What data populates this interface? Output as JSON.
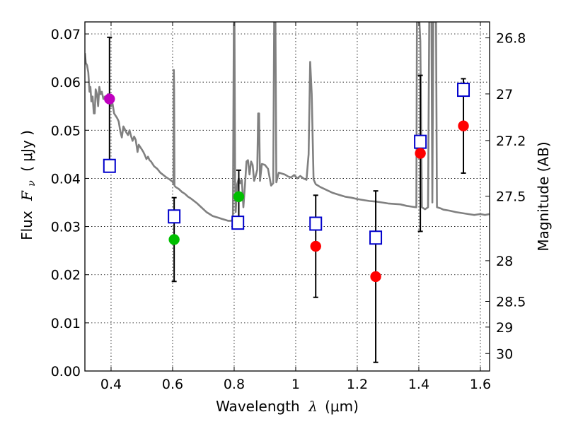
{
  "chart_data": {
    "type": "scatter",
    "xlabel_prefix": "Wavelength",
    "xlabel_var": "λ",
    "xlabel_unit": "(μm)",
    "ylabel_left_prefix": "Flux",
    "ylabel_left_var": "F",
    "ylabel_left_sub": "ν",
    "ylabel_left_unit": "( μJy )",
    "ylabel_right": "Magnitude (AB)",
    "xlim": [
      0.315,
      1.63
    ],
    "ylim": [
      0.0,
      0.0725
    ],
    "grid": true,
    "x_ticks": [
      0.4,
      0.6,
      0.8,
      1.0,
      1.2,
      1.4,
      1.6
    ],
    "x_tick_labels": [
      "0.4",
      "0.6",
      "0.8",
      "1",
      "1.2",
      "1.4",
      "1.6"
    ],
    "y_ticks": [
      0.0,
      0.01,
      0.02,
      0.03,
      0.04,
      0.05,
      0.06,
      0.07
    ],
    "y_tick_labels": [
      "0.00",
      "0.01",
      "0.02",
      "0.03",
      "0.04",
      "0.05",
      "0.06",
      "0.07"
    ],
    "mag_ticks": [
      {
        "mag": 26.8,
        "label": "26.8"
      },
      {
        "mag": 27.0,
        "label": "27"
      },
      {
        "mag": 27.2,
        "label": "27.2"
      },
      {
        "mag": 27.5,
        "label": "27.5"
      },
      {
        "mag": 28.0,
        "label": "28"
      },
      {
        "mag": 28.5,
        "label": "28.5"
      },
      {
        "mag": 29.0,
        "label": "29"
      },
      {
        "mag": 30.0,
        "label": "30"
      }
    ],
    "colors": {
      "observed_blue_band": "#bf00bf",
      "observed_green_band": "#00bf00",
      "observed_red_band": "#ff0000",
      "model_photometry": "#0000cc",
      "model_spectrum": "#808080",
      "errorbar": "#000000"
    },
    "observed_points": [
      {
        "x": 0.395,
        "y": 0.0565,
        "err": 0.0128,
        "color": "#bf00bf"
      },
      {
        "x": 0.605,
        "y": 0.0273,
        "err": 0.0087,
        "color": "#00bf00"
      },
      {
        "x": 0.815,
        "y": 0.0362,
        "err": 0.0055,
        "color": "#00bf00"
      },
      {
        "x": 1.065,
        "y": 0.0259,
        "err": 0.0106,
        "color": "#ff0000"
      },
      {
        "x": 1.26,
        "y": 0.0196,
        "err": 0.0178,
        "color": "#ff0000"
      },
      {
        "x": 1.405,
        "y": 0.0452,
        "err": 0.0162,
        "color": "#ff0000"
      },
      {
        "x": 1.545,
        "y": 0.0509,
        "err": 0.0098,
        "color": "#ff0000"
      }
    ],
    "model_points": [
      {
        "x": 0.395,
        "y": 0.0426
      },
      {
        "x": 0.605,
        "y": 0.0321
      },
      {
        "x": 0.812,
        "y": 0.0308
      },
      {
        "x": 1.065,
        "y": 0.0306
      },
      {
        "x": 1.26,
        "y": 0.0277
      },
      {
        "x": 1.405,
        "y": 0.0476
      },
      {
        "x": 1.545,
        "y": 0.0584
      }
    ],
    "spectrum": [
      [
        0.315,
        0.066
      ],
      [
        0.318,
        0.064
      ],
      [
        0.322,
        0.0635
      ],
      [
        0.326,
        0.062
      ],
      [
        0.33,
        0.058
      ],
      [
        0.333,
        0.059
      ],
      [
        0.336,
        0.056
      ],
      [
        0.34,
        0.057
      ],
      [
        0.344,
        0.0535
      ],
      [
        0.347,
        0.0535
      ],
      [
        0.35,
        0.0585
      ],
      [
        0.354,
        0.0575
      ],
      [
        0.358,
        0.055
      ],
      [
        0.362,
        0.059
      ],
      [
        0.366,
        0.0575
      ],
      [
        0.37,
        0.058
      ],
      [
        0.375,
        0.0565
      ],
      [
        0.38,
        0.057
      ],
      [
        0.385,
        0.056
      ],
      [
        0.39,
        0.0575
      ],
      [
        0.395,
        0.0565
      ],
      [
        0.4,
        0.055
      ],
      [
        0.405,
        0.0555
      ],
      [
        0.41,
        0.0535
      ],
      [
        0.415,
        0.053
      ],
      [
        0.42,
        0.0525
      ],
      [
        0.425,
        0.0518
      ],
      [
        0.43,
        0.0498
      ],
      [
        0.435,
        0.0485
      ],
      [
        0.44,
        0.0508
      ],
      [
        0.445,
        0.0502
      ],
      [
        0.45,
        0.0495
      ],
      [
        0.455,
        0.049
      ],
      [
        0.46,
        0.05
      ],
      [
        0.465,
        0.0488
      ],
      [
        0.47,
        0.0478
      ],
      [
        0.475,
        0.0487
      ],
      [
        0.48,
        0.048
      ],
      [
        0.486,
        0.0455
      ],
      [
        0.49,
        0.047
      ],
      [
        0.495,
        0.0465
      ],
      [
        0.5,
        0.046
      ],
      [
        0.505,
        0.0455
      ],
      [
        0.51,
        0.0448
      ],
      [
        0.515,
        0.044
      ],
      [
        0.52,
        0.0445
      ],
      [
        0.525,
        0.0438
      ],
      [
        0.53,
        0.0435
      ],
      [
        0.54,
        0.0425
      ],
      [
        0.55,
        0.042
      ],
      [
        0.56,
        0.0412
      ],
      [
        0.57,
        0.0407
      ],
      [
        0.58,
        0.0402
      ],
      [
        0.59,
        0.0398
      ],
      [
        0.6,
        0.0393
      ],
      [
        0.603,
        0.0388
      ],
      [
        0.604,
        0.0625
      ],
      [
        0.605,
        0.0585
      ],
      [
        0.606,
        0.0385
      ],
      [
        0.61,
        0.0382
      ],
      [
        0.62,
        0.0378
      ],
      [
        0.63,
        0.0372
      ],
      [
        0.64,
        0.0368
      ],
      [
        0.65,
        0.0362
      ],
      [
        0.66,
        0.0358
      ],
      [
        0.67,
        0.0353
      ],
      [
        0.68,
        0.0348
      ],
      [
        0.69,
        0.0342
      ],
      [
        0.7,
        0.0336
      ],
      [
        0.71,
        0.033
      ],
      [
        0.72,
        0.0326
      ],
      [
        0.73,
        0.0322
      ],
      [
        0.74,
        0.032
      ],
      [
        0.75,
        0.0318
      ],
      [
        0.76,
        0.0316
      ],
      [
        0.77,
        0.0314
      ],
      [
        0.78,
        0.0312
      ],
      [
        0.79,
        0.0312
      ],
      [
        0.796,
        0.0314
      ],
      [
        0.799,
        0.072
      ],
      [
        0.801,
        0.0725
      ],
      [
        0.803,
        0.0395
      ],
      [
        0.805,
        0.033
      ],
      [
        0.81,
        0.0388
      ],
      [
        0.815,
        0.04
      ],
      [
        0.82,
        0.039
      ],
      [
        0.825,
        0.0397
      ],
      [
        0.83,
        0.034
      ],
      [
        0.835,
        0.0385
      ],
      [
        0.84,
        0.0435
      ],
      [
        0.845,
        0.0438
      ],
      [
        0.85,
        0.0408
      ],
      [
        0.855,
        0.0435
      ],
      [
        0.86,
        0.0428
      ],
      [
        0.865,
        0.0395
      ],
      [
        0.87,
        0.0405
      ],
      [
        0.875,
        0.0418
      ],
      [
        0.878,
        0.0535
      ],
      [
        0.881,
        0.0535
      ],
      [
        0.884,
        0.0395
      ],
      [
        0.89,
        0.043
      ],
      [
        0.9,
        0.0428
      ],
      [
        0.91,
        0.042
      ],
      [
        0.92,
        0.0385
      ],
      [
        0.927,
        0.039
      ],
      [
        0.93,
        0.0725
      ],
      [
        0.934,
        0.0725
      ],
      [
        0.937,
        0.0392
      ],
      [
        0.945,
        0.0412
      ],
      [
        0.955,
        0.041
      ],
      [
        0.965,
        0.0408
      ],
      [
        0.975,
        0.0404
      ],
      [
        0.985,
        0.0402
      ],
      [
        0.995,
        0.0407
      ],
      [
        1.005,
        0.04
      ],
      [
        1.015,
        0.0405
      ],
      [
        1.025,
        0.04
      ],
      [
        1.035,
        0.0397
      ],
      [
        1.042,
        0.045
      ],
      [
        1.047,
        0.0642
      ],
      [
        1.052,
        0.0575
      ],
      [
        1.058,
        0.0398
      ],
      [
        1.065,
        0.0388
      ],
      [
        1.08,
        0.0382
      ],
      [
        1.1,
        0.0376
      ],
      [
        1.12,
        0.037
      ],
      [
        1.14,
        0.0366
      ],
      [
        1.16,
        0.0362
      ],
      [
        1.18,
        0.036
      ],
      [
        1.2,
        0.0357
      ],
      [
        1.22,
        0.0355
      ],
      [
        1.24,
        0.0353
      ],
      [
        1.26,
        0.0352
      ],
      [
        1.28,
        0.035
      ],
      [
        1.3,
        0.0348
      ],
      [
        1.32,
        0.0347
      ],
      [
        1.34,
        0.0346
      ],
      [
        1.36,
        0.0343
      ],
      [
        1.38,
        0.0341
      ],
      [
        1.392,
        0.034
      ],
      [
        1.394,
        0.0725
      ],
      [
        1.402,
        0.0725
      ],
      [
        1.405,
        0.0685
      ],
      [
        1.41,
        0.034
      ],
      [
        1.415,
        0.0338
      ],
      [
        1.42,
        0.0336
      ],
      [
        1.43,
        0.034
      ],
      [
        1.434,
        0.0725
      ],
      [
        1.441,
        0.0725
      ],
      [
        1.444,
        0.035
      ],
      [
        1.447,
        0.0725
      ],
      [
        1.456,
        0.0725
      ],
      [
        1.459,
        0.034
      ],
      [
        1.47,
        0.0338
      ],
      [
        1.48,
        0.0335
      ],
      [
        1.5,
        0.0333
      ],
      [
        1.52,
        0.033
      ],
      [
        1.54,
        0.0328
      ],
      [
        1.56,
        0.0326
      ],
      [
        1.58,
        0.0324
      ],
      [
        1.6,
        0.0326
      ],
      [
        1.615,
        0.0324
      ],
      [
        1.63,
        0.0326
      ]
    ]
  }
}
